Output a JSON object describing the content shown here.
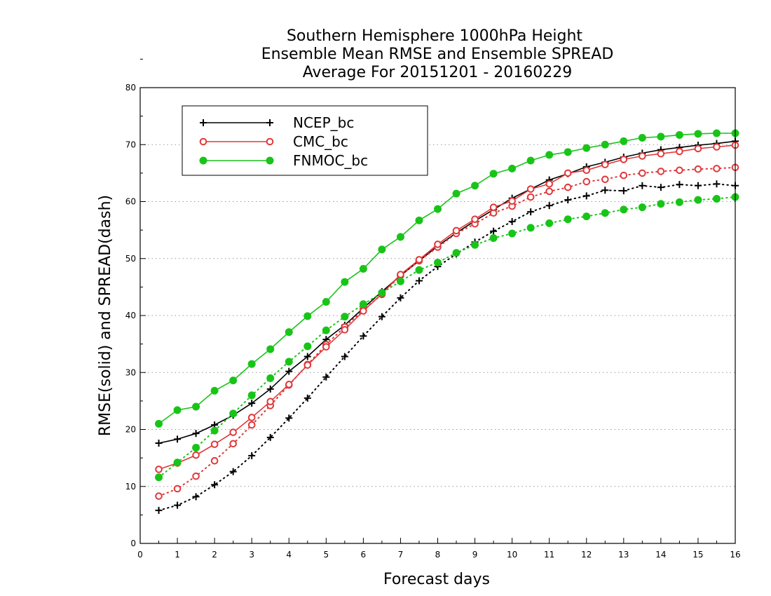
{
  "chart_data": {
    "type": "line",
    "title": [
      "Southern Hemisphere 1000hPa Height",
      "Ensemble Mean RMSE and Ensemble SPREAD",
      "Average For 20151201 - 20160229"
    ],
    "xlabel": "Forecast days",
    "ylabel": "RMSE(solid) and SPREAD(dash)",
    "xlim": [
      0,
      16
    ],
    "ylim": [
      0,
      80
    ],
    "xticks": [
      0,
      1,
      2,
      3,
      4,
      5,
      6,
      7,
      8,
      9,
      10,
      11,
      12,
      13,
      14,
      15,
      16
    ],
    "yticks": [
      0,
      10,
      20,
      30,
      40,
      50,
      60,
      70,
      80
    ],
    "grid": "horizontal-dotted",
    "legend_position": "top-left",
    "x": [
      0.5,
      1,
      1.5,
      2,
      2.5,
      3,
      3.5,
      4,
      4.5,
      5,
      5.5,
      6,
      6.5,
      7,
      7.5,
      8,
      8.5,
      9,
      9.5,
      10,
      10.5,
      11,
      11.5,
      12,
      12.5,
      13,
      13.5,
      14,
      14.5,
      15,
      15.5,
      16
    ],
    "series": [
      {
        "name": "NCEP_bc",
        "color": "#000000",
        "marker": "plus",
        "rmse": [
          17.6,
          18.3,
          19.3,
          20.8,
          22.5,
          24.6,
          27.1,
          30.2,
          32.8,
          35.8,
          38.3,
          41.3,
          44.2,
          47.0,
          49.6,
          52.2,
          54.5,
          56.6,
          58.6,
          60.6,
          62.2,
          63.8,
          64.9,
          66.1,
          66.9,
          67.8,
          68.5,
          69.1,
          69.5,
          69.9,
          70.2,
          70.6
        ],
        "spread": [
          5.8,
          6.7,
          8.2,
          10.3,
          12.6,
          15.4,
          18.6,
          22.0,
          25.5,
          29.2,
          32.8,
          36.4,
          39.8,
          43.1,
          46.1,
          48.6,
          50.8,
          52.9,
          54.8,
          56.5,
          58.2,
          59.3,
          60.3,
          61.0,
          62.0,
          61.9,
          62.8,
          62.5,
          63.0,
          62.8,
          63.1,
          62.8
        ]
      },
      {
        "name": "CMC_bc",
        "color": "#e0383a",
        "marker": "open-circle",
        "rmse": [
          13.0,
          14.1,
          15.5,
          17.4,
          19.5,
          22.1,
          24.9,
          27.9,
          31.3,
          34.5,
          37.5,
          40.8,
          43.8,
          47.2,
          49.8,
          52.5,
          54.9,
          56.9,
          59.0,
          60.1,
          62.2,
          63.1,
          65.0,
          65.5,
          66.5,
          67.4,
          68.0,
          68.4,
          68.8,
          69.3,
          69.6,
          69.9
        ],
        "spread": [
          8.3,
          9.6,
          11.8,
          14.5,
          17.5,
          20.8,
          24.2,
          27.8,
          31.4,
          34.9,
          38.0,
          41.0,
          43.7,
          47.0,
          49.6,
          52.0,
          54.4,
          56.1,
          58.0,
          59.2,
          60.8,
          61.8,
          62.5,
          63.5,
          63.9,
          64.6,
          65.0,
          65.3,
          65.5,
          65.7,
          65.8,
          66.0
        ]
      },
      {
        "name": "FNMOC_bc",
        "color": "#19c419",
        "marker": "filled-circle",
        "rmse": [
          21.0,
          23.4,
          24.0,
          26.8,
          28.6,
          31.5,
          34.1,
          37.1,
          39.9,
          42.4,
          45.9,
          48.2,
          51.6,
          53.8,
          56.7,
          58.7,
          61.4,
          62.8,
          64.9,
          65.8,
          67.2,
          68.2,
          68.7,
          69.4,
          70.0,
          70.6,
          71.2,
          71.4,
          71.7,
          71.9,
          72.0,
          72.0
        ],
        "spread": [
          11.6,
          14.2,
          16.8,
          19.8,
          22.8,
          26.0,
          29.0,
          31.9,
          34.6,
          37.4,
          39.8,
          42.0,
          44.0,
          46.0,
          48.0,
          49.3,
          51.0,
          52.4,
          53.6,
          54.4,
          55.4,
          56.2,
          56.9,
          57.4,
          58.0,
          58.6,
          59.0,
          59.6,
          59.9,
          60.3,
          60.5,
          60.8
        ]
      }
    ]
  }
}
